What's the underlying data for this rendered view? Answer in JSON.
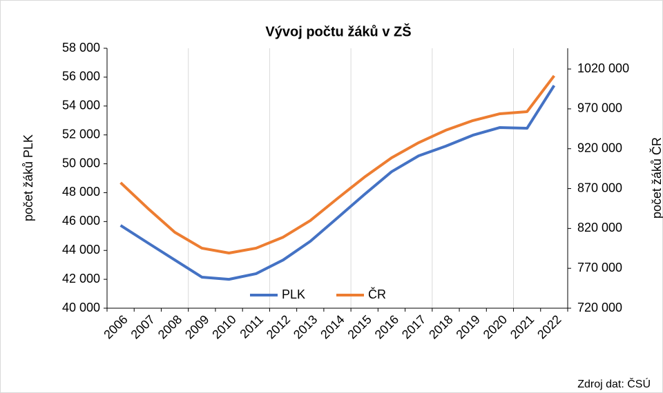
{
  "chart_data": {
    "type": "line",
    "title": "Vývoj počtu žáků v ZŠ",
    "categories": [
      "2006",
      "2007",
      "2008",
      "2009",
      "2010",
      "2011",
      "2012",
      "2013",
      "2014",
      "2015",
      "2016",
      "2017",
      "2018",
      "2019",
      "2020",
      "2021",
      "2022"
    ],
    "series": [
      {
        "name": "PLK",
        "color": "#4472c4",
        "values": [
          45730,
          44530,
          43340,
          42150,
          42000,
          42390,
          43340,
          44630,
          46250,
          47880,
          49450,
          50550,
          51220,
          51980,
          52510,
          52460,
          55420
        ]
      },
      {
        "name": "ČR",
        "color": "#ed7d31",
        "axis": "y2",
        "values": [
          877400,
          845400,
          815200,
          795300,
          789200,
          795300,
          809100,
          829900,
          857500,
          884400,
          908600,
          927600,
          943200,
          955300,
          963900,
          966500,
          1011500
        ]
      }
    ],
    "ylabel": "počet žáků PLK",
    "y2label": "počet žáků ČR",
    "ylim": [
      40000,
      58000
    ],
    "yticks": [
      {
        "value": 40000,
        "label": "40 000"
      },
      {
        "value": 42000,
        "label": "42 000"
      },
      {
        "value": 44000,
        "label": "44 000"
      },
      {
        "value": 46000,
        "label": "46 000"
      },
      {
        "value": 48000,
        "label": "48 000"
      },
      {
        "value": 50000,
        "label": "50 000"
      },
      {
        "value": 52000,
        "label": "52 000"
      },
      {
        "value": 54000,
        "label": "54 000"
      },
      {
        "value": 56000,
        "label": "56 000"
      },
      {
        "value": 58000,
        "label": "58 000"
      }
    ],
    "y2lim": [
      720000,
      1046000
    ],
    "y2ticks": [
      {
        "value": 720000,
        "label": "720 000"
      },
      {
        "value": 770000,
        "label": "770 000"
      },
      {
        "value": 820000,
        "label": "820 000"
      },
      {
        "value": 870000,
        "label": "870 000"
      },
      {
        "value": 920000,
        "label": "920 000"
      },
      {
        "value": 970000,
        "label": "970 000"
      },
      {
        "value": 1020000,
        "label": "1020 000"
      }
    ],
    "grid": true,
    "legend": "bottom",
    "source": "Zdroj dat: ČSÚ"
  }
}
